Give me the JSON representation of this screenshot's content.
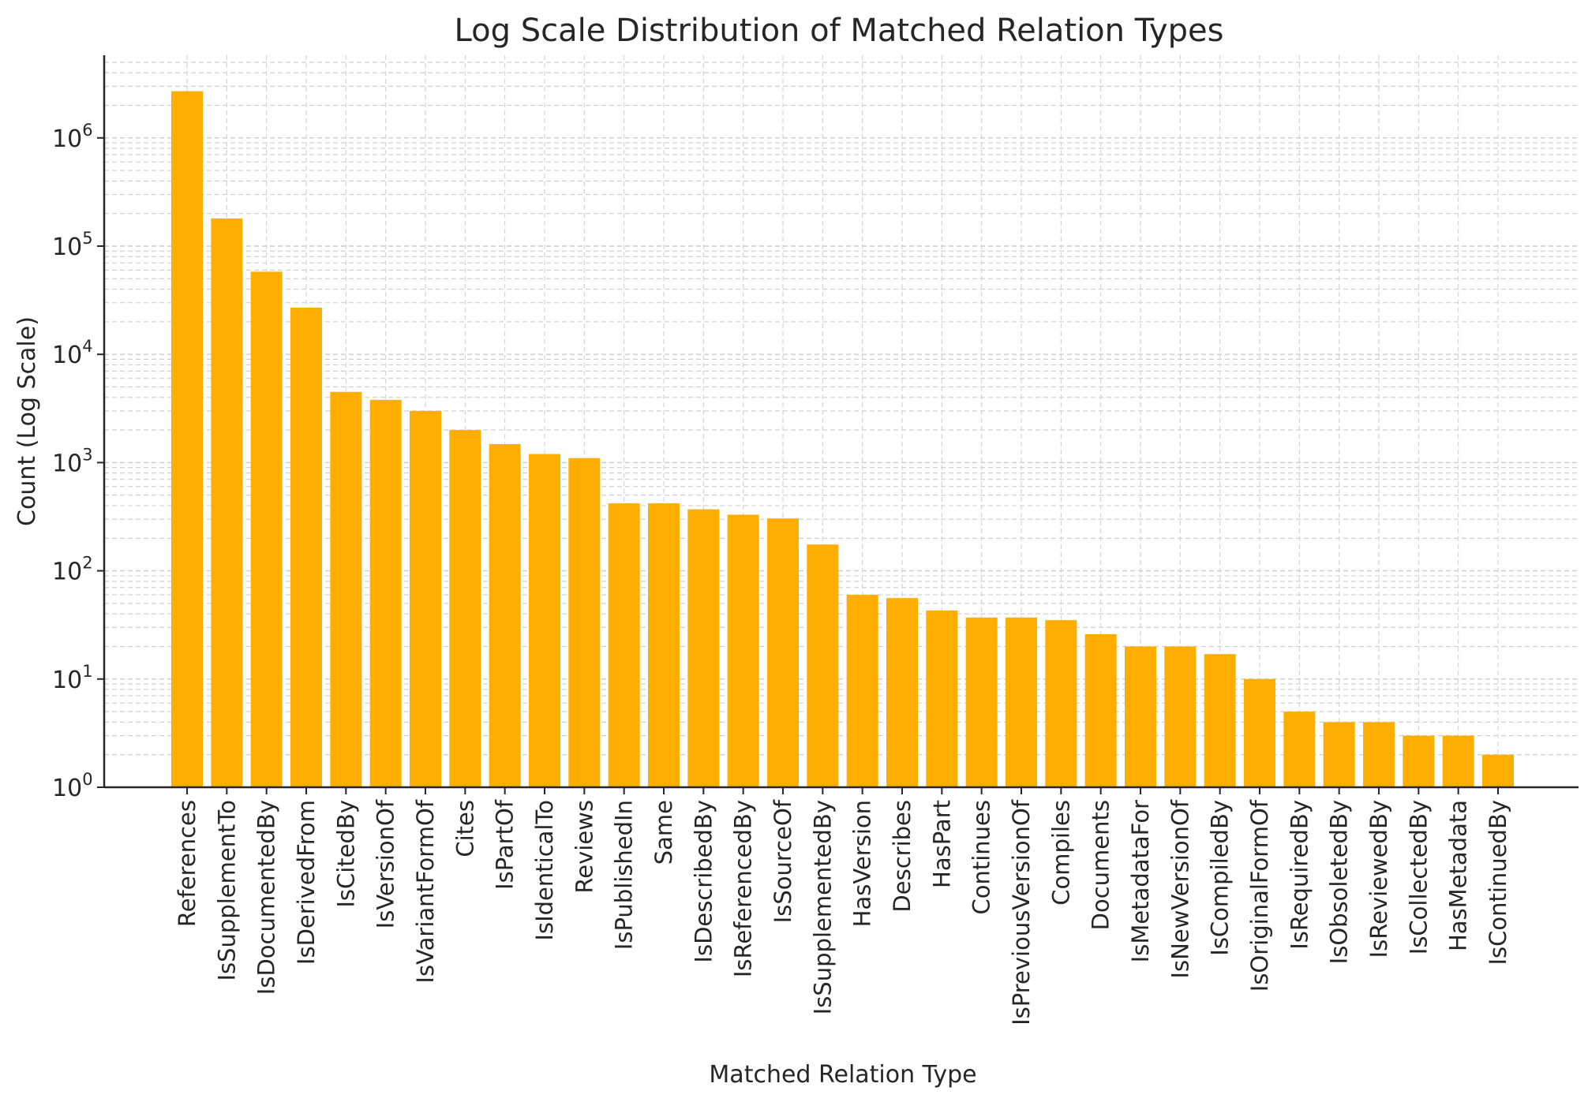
{
  "chart_data": {
    "type": "bar",
    "title": "Log Scale Distribution of Matched Relation Types",
    "xlabel": "Matched Relation Type",
    "ylabel": "Count (Log Scale)",
    "yscale": "log",
    "ylim": [
      1,
      5000000
    ],
    "grid": true,
    "color": "#FFAE00",
    "y_tick_labels": [
      {
        "base": "10",
        "exp": "0"
      },
      {
        "base": "10",
        "exp": "1"
      },
      {
        "base": "10",
        "exp": "2"
      },
      {
        "base": "10",
        "exp": "3"
      },
      {
        "base": "10",
        "exp": "4"
      },
      {
        "base": "10",
        "exp": "5"
      },
      {
        "base": "10",
        "exp": "6"
      }
    ],
    "categories": [
      "References",
      "IsSupplementTo",
      "IsDocumentedBy",
      "IsDerivedFrom",
      "IsCitedBy",
      "IsVersionOf",
      "IsVariantFormOf",
      "Cites",
      "IsPartOf",
      "IsIdenticalTo",
      "Reviews",
      "IsPublishedIn",
      "Same",
      "IsDescribedBy",
      "IsReferencedBy",
      "IsSourceOf",
      "IsSupplementedBy",
      "HasVersion",
      "Describes",
      "HasPart",
      "Continues",
      "IsPreviousVersionOf",
      "Compiles",
      "Documents",
      "IsMetadataFor",
      "IsNewVersionOf",
      "IsCompiledBy",
      "IsOriginalFormOf",
      "IsRequiredBy",
      "IsObsoletedBy",
      "IsReviewedBy",
      "IsCollectedBy",
      "HasMetadata",
      "IsContinuedBy"
    ],
    "values": [
      2700000,
      180000,
      58000,
      27000,
      4500,
      3800,
      3000,
      2000,
      1480,
      1200,
      1100,
      420,
      420,
      370,
      330,
      305,
      175,
      60,
      56,
      43,
      37,
      37,
      35,
      26,
      20,
      20,
      17,
      10,
      5,
      4,
      4,
      3,
      3,
      2
    ]
  }
}
